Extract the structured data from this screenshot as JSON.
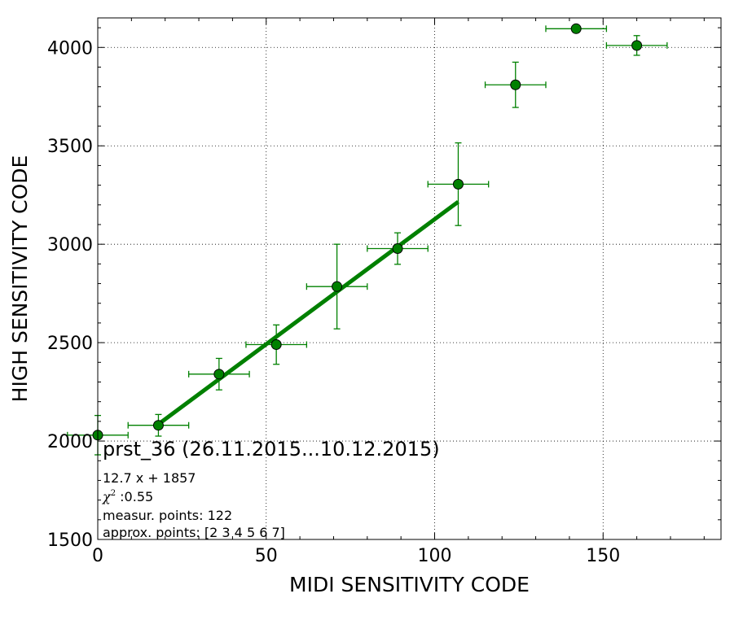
{
  "chart_data": {
    "type": "scatter",
    "xlabel": "MIDI SENSITIVITY CODE",
    "ylabel": "HIGH SENSITIVITY CODE",
    "xlim": [
      0,
      185
    ],
    "ylim": [
      1500,
      4150
    ],
    "xticks": [
      0,
      50,
      100,
      150
    ],
    "yticks": [
      1500,
      2000,
      2500,
      3000,
      3500,
      4000
    ],
    "grid": true,
    "color": "#008000",
    "points": [
      {
        "x": 0,
        "y": 2030,
        "xerr": 9,
        "yerr": 100
      },
      {
        "x": 18,
        "y": 2080,
        "xerr": 9,
        "yerr": 55
      },
      {
        "x": 36,
        "y": 2340,
        "xerr": 9,
        "yerr": 80
      },
      {
        "x": 53,
        "y": 2490,
        "xerr": 9,
        "yerr": 100
      },
      {
        "x": 71,
        "y": 2785,
        "xerr": 9,
        "yerr": 215
      },
      {
        "x": 89,
        "y": 2978,
        "xerr": 9,
        "yerr": 80
      },
      {
        "x": 107,
        "y": 3305,
        "xerr": 9,
        "yerr": 210
      },
      {
        "x": 124,
        "y": 3810,
        "xerr": 9,
        "yerr": 115
      },
      {
        "x": 142,
        "y": 4095,
        "xerr": 9,
        "yerr": 0
      },
      {
        "x": 160,
        "y": 4010,
        "xerr": 9,
        "yerr": 50
      }
    ],
    "fit": {
      "slope": 12.7,
      "intercept": 1857,
      "x_range": [
        18,
        107
      ]
    },
    "annotations": {
      "title": "prst_36 (26.11.2015...10.12.2015)",
      "equation": "12.7 x + 1857",
      "chi_symbol": "χ",
      "chi_exp": "2",
      "chi_value": " :0.55",
      "measur": "measur. points: 122",
      "approx": "approx. points: [2 3 4 5 6 7]"
    }
  }
}
